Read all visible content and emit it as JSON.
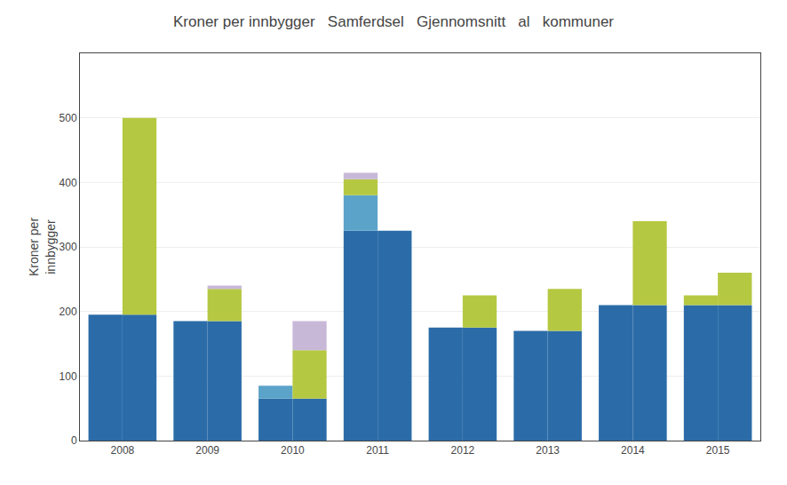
{
  "chart_data": {
    "type": "bar",
    "title": "Kroner per innbygger   Samferdsel   Gjennomsnitt   al   kommuner",
    "ylabel": "Kroner per\ninnbygger",
    "categories": [
      "2008",
      "2009",
      "2010",
      "2011",
      "2012",
      "2013",
      "2014",
      "2015"
    ],
    "stacked": true,
    "stacks": [
      {
        "series": [
          {
            "color": "#2b6ca8",
            "values": [
              195,
              185,
              65,
              325,
              175,
              170,
              210,
              210
            ]
          },
          {
            "color": "#5ba3c9",
            "values": [
              0,
              0,
              20,
              55,
              0,
              0,
              0,
              0
            ]
          },
          {
            "color": "#b5c842",
            "values": [
              0,
              0,
              0,
              25,
              0,
              0,
              0,
              15
            ]
          },
          {
            "color": "#c8b8d8",
            "values": [
              0,
              0,
              0,
              10,
              0,
              0,
              0,
              0
            ]
          }
        ]
      },
      {
        "series": [
          {
            "color": "#2b6ca8",
            "values": [
              195,
              185,
              65,
              325,
              175,
              170,
              210,
              210
            ]
          },
          {
            "color": "#b5c842",
            "values": [
              305,
              50,
              75,
              0,
              50,
              65,
              130,
              50
            ]
          },
          {
            "color": "#c8b8d8",
            "values": [
              0,
              5,
              45,
              0,
              0,
              0,
              0,
              0
            ]
          }
        ]
      }
    ],
    "ylim": [
      0,
      600
    ],
    "yticks": [
      0,
      100,
      200,
      300,
      400,
      500
    ],
    "grid": true,
    "legend": false
  }
}
